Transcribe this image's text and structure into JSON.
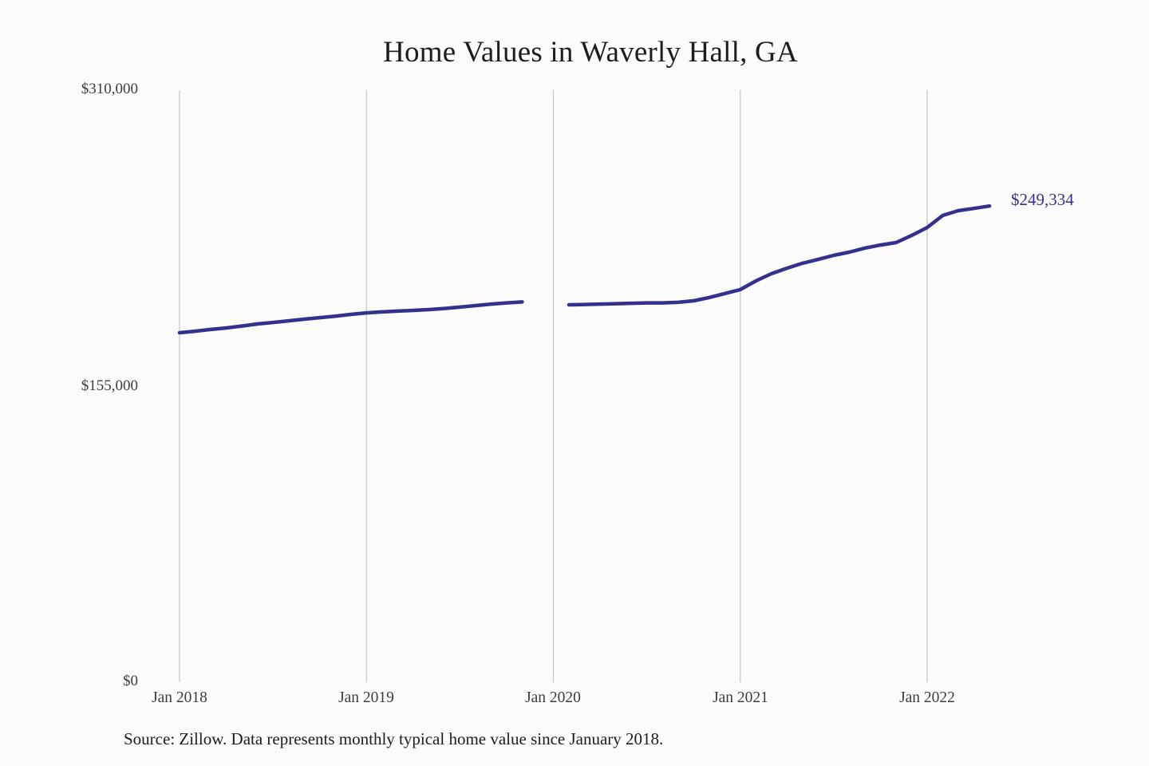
{
  "page_title": "Home Values in Waverly Hall, GA",
  "footer": {
    "source": "Source: Zillow. Data represents monthly typical home value since January 2018."
  },
  "chart_data": {
    "type": "line",
    "title": "Home Values in Waverly Hall, GA",
    "xlabel": "",
    "ylabel": "",
    "ylim": [
      0,
      310000
    ],
    "grid": "vertical-only",
    "legend": "none",
    "line_color": "#34318e",
    "gridline_color": "#c9c9c9",
    "background_color": "#fbfbf9",
    "end_label": "$249,334",
    "end_value": 249334,
    "y_ticks": [
      {
        "label": "$310,000",
        "value": 310000
      },
      {
        "label": "$155,000",
        "value": 155000
      },
      {
        "label": "$0",
        "value": 0
      }
    ],
    "x_ticks": [
      {
        "label": "Jan 2018",
        "month_index": 0
      },
      {
        "label": "Jan 2019",
        "month_index": 12
      },
      {
        "label": "Jan 2020",
        "month_index": 24
      },
      {
        "label": "Jan 2021",
        "month_index": 36
      },
      {
        "label": "Jan 2022",
        "month_index": 48
      }
    ],
    "categories": [
      "Jan 2018",
      "Feb 2018",
      "Mar 2018",
      "Apr 2018",
      "May 2018",
      "Jun 2018",
      "Jul 2018",
      "Aug 2018",
      "Sep 2018",
      "Oct 2018",
      "Nov 2018",
      "Dec 2018",
      "Jan 2019",
      "Feb 2019",
      "Mar 2019",
      "Apr 2019",
      "May 2019",
      "Jun 2019",
      "Jul 2019",
      "Aug 2019",
      "Sep 2019",
      "Oct 2019",
      "Nov 2019",
      "Dec 2019",
      "Jan 2020",
      "Feb 2020",
      "Mar 2020",
      "Apr 2020",
      "May 2020",
      "Jun 2020",
      "Jul 2020",
      "Aug 2020",
      "Sep 2020",
      "Oct 2020",
      "Nov 2020",
      "Dec 2020",
      "Jan 2021",
      "Feb 2021",
      "Mar 2021",
      "Apr 2021",
      "May 2021",
      "Jun 2021",
      "Jul 2021",
      "Aug 2021",
      "Sep 2021",
      "Oct 2021",
      "Nov 2021",
      "Dec 2021",
      "Jan 2022",
      "Feb 2022",
      "Mar 2022",
      "Apr 2022",
      "May 2022"
    ],
    "values": [
      183000,
      183800,
      184700,
      185500,
      186500,
      187600,
      188400,
      189200,
      190100,
      190900,
      191700,
      192600,
      193400,
      193900,
      194300,
      194700,
      195100,
      195700,
      196400,
      197200,
      198000,
      198600,
      199100,
      null,
      null,
      197600,
      197800,
      198000,
      198200,
      198400,
      198600,
      198600,
      198900,
      199700,
      201400,
      203500,
      205600,
      210100,
      213900,
      216800,
      219400,
      221400,
      223500,
      225200,
      227300,
      228900,
      230200,
      233900,
      238100,
      244400,
      246900,
      248100,
      249334
    ],
    "note": "Gap in line for Dec 2019 and Jan 2020"
  }
}
